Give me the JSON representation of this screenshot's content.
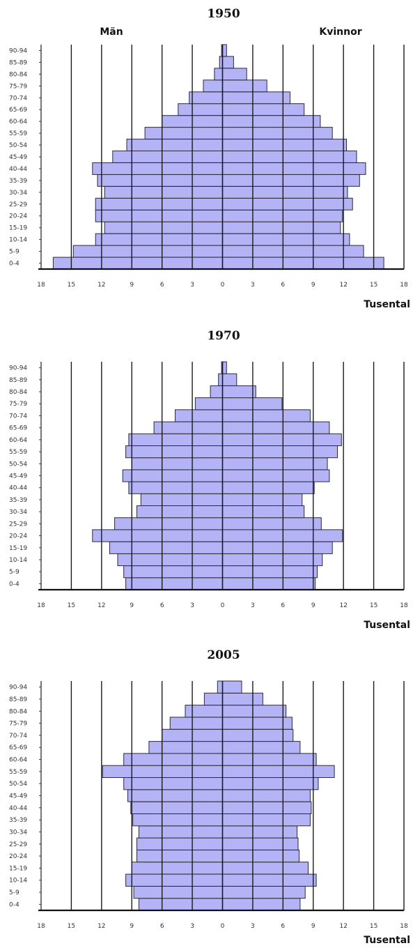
{
  "chart_data": [
    {
      "type": "bar",
      "title": "1950",
      "left_label": "Män",
      "right_label": "Kvinnor",
      "unit_label": "Tusental",
      "age_groups": [
        "0-4",
        "5-9",
        "10-14",
        "15-19",
        "20-24",
        "25-29",
        "30-34",
        "35-39",
        "40-44",
        "45-49",
        "50-54",
        "55-59",
        "60-64",
        "65-69",
        "70-74",
        "75-79",
        "80-84",
        "85-89",
        "90-94"
      ],
      "x_ticks": [
        "18",
        "15",
        "12",
        "9",
        "6",
        "3",
        "0",
        "3",
        "6",
        "9",
        "12",
        "15",
        "18"
      ],
      "xlim": [
        -18,
        18
      ],
      "gridlines": [
        -15,
        -12,
        -9,
        -6,
        -3,
        0,
        3,
        6,
        9,
        12,
        15,
        18
      ],
      "series": [
        {
          "name": "Män",
          "values": [
            16.8,
            14.8,
            12.6,
            11.7,
            12.6,
            12.6,
            11.7,
            12.4,
            12.9,
            10.9,
            9.5,
            7.7,
            6.0,
            4.4,
            3.3,
            1.9,
            0.8,
            0.3,
            0.1
          ]
        },
        {
          "name": "Kvinnor",
          "values": [
            16.0,
            14.0,
            12.6,
            11.7,
            11.9,
            12.9,
            12.4,
            13.6,
            14.2,
            13.3,
            12.3,
            10.9,
            9.7,
            8.1,
            6.7,
            4.4,
            2.4,
            1.1,
            0.4
          ]
        }
      ]
    },
    {
      "type": "bar",
      "title": "1970",
      "unit_label": "Tusental",
      "age_groups": [
        "0-4",
        "5-9",
        "10-14",
        "15-19",
        "20-24",
        "25-29",
        "30-34",
        "35-39",
        "40-44",
        "45-49",
        "50-54",
        "55-59",
        "60-64",
        "65-69",
        "70-74",
        "75-79",
        "80-84",
        "85-89",
        "90-94"
      ],
      "x_ticks": [
        "18",
        "15",
        "12",
        "9",
        "6",
        "3",
        "0",
        "3",
        "6",
        "9",
        "12",
        "15",
        "18"
      ],
      "xlim": [
        -18,
        18
      ],
      "gridlines": [
        -15,
        -12,
        -9,
        -6,
        -3,
        0,
        3,
        6,
        9,
        12,
        15,
        18
      ],
      "series": [
        {
          "name": "Män",
          "values": [
            9.6,
            9.8,
            10.4,
            11.2,
            12.9,
            10.7,
            8.5,
            8.1,
            9.3,
            9.9,
            9.0,
            9.6,
            9.3,
            6.8,
            4.7,
            2.7,
            1.2,
            0.4,
            0.1
          ]
        },
        {
          "name": "Kvinnor",
          "values": [
            9.2,
            9.4,
            9.9,
            10.9,
            11.9,
            9.8,
            8.1,
            7.9,
            9.1,
            10.6,
            10.4,
            11.4,
            11.8,
            10.6,
            8.7,
            5.9,
            3.3,
            1.4,
            0.4
          ]
        }
      ]
    },
    {
      "type": "bar",
      "title": "2005",
      "unit_label": "Tusental",
      "age_groups": [
        "0-4",
        "5-9",
        "10-14",
        "15-19",
        "20-24",
        "25-29",
        "30-34",
        "35-39",
        "40-44",
        "45-49",
        "50-54",
        "55-59",
        "60-64",
        "65-69",
        "70-74",
        "75-79",
        "80-84",
        "85-89",
        "90-94"
      ],
      "x_ticks": [
        "18",
        "15",
        "12",
        "9",
        "6",
        "3",
        "0",
        "3",
        "6",
        "9",
        "12",
        "15",
        "18"
      ],
      "xlim": [
        -18,
        18
      ],
      "gridlines": [
        -15,
        -12,
        -9,
        -6,
        -3,
        0,
        3,
        6,
        9,
        12,
        15,
        18
      ],
      "series": [
        {
          "name": "Män",
          "values": [
            8.3,
            8.8,
            9.6,
            9.0,
            8.5,
            8.5,
            8.3,
            8.9,
            9.1,
            9.4,
            9.8,
            11.9,
            9.8,
            7.3,
            6.0,
            5.2,
            3.7,
            1.8,
            0.5
          ]
        },
        {
          "name": "Kvinnor",
          "values": [
            7.7,
            8.2,
            9.3,
            8.5,
            7.6,
            7.5,
            7.4,
            8.7,
            8.8,
            8.7,
            9.5,
            11.1,
            9.3,
            7.7,
            7.0,
            6.9,
            6.3,
            4.0,
            1.9
          ]
        }
      ]
    }
  ]
}
